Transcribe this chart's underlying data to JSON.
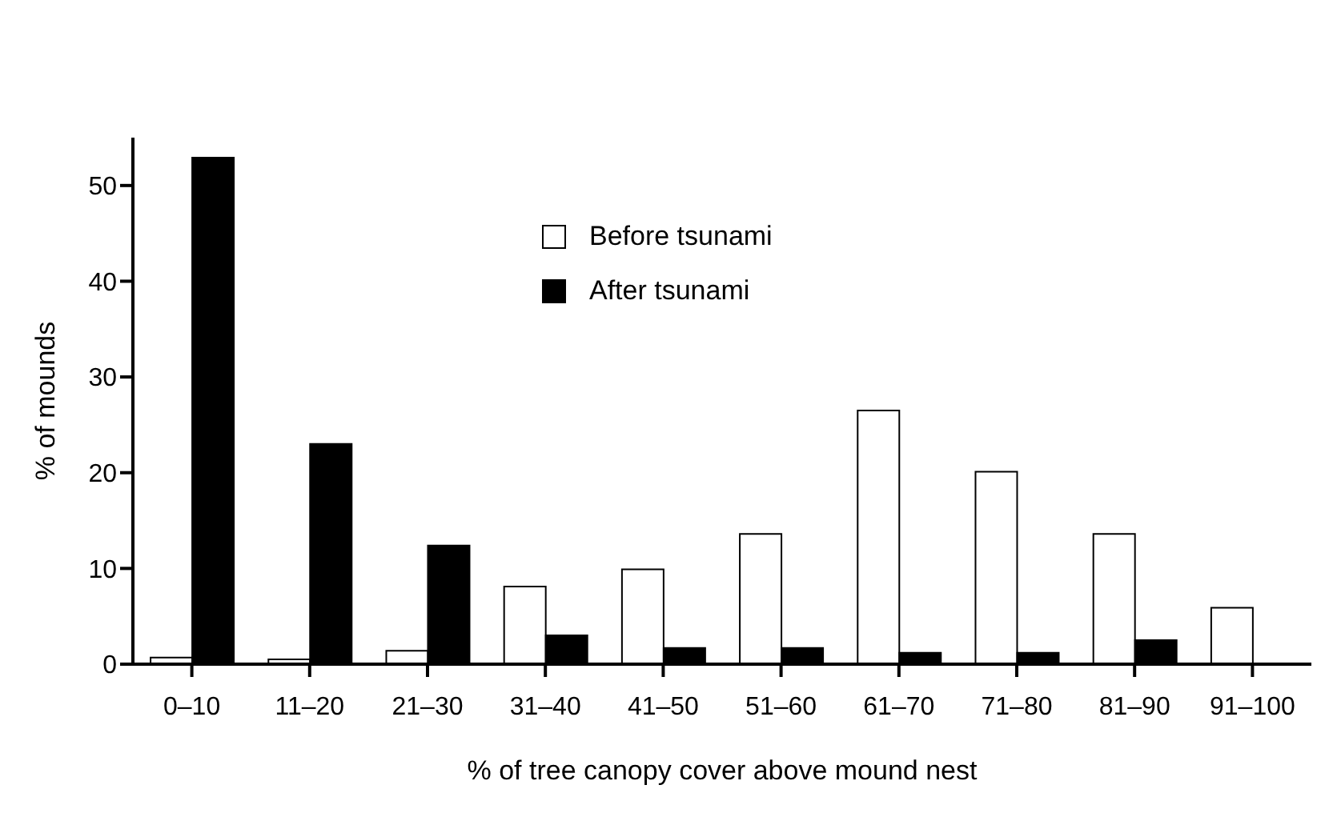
{
  "chart_data": {
    "type": "bar",
    "xlabel": "% of tree canopy cover above mound nest",
    "ylabel": "% of mounds",
    "categories": [
      "0–10",
      "11–20",
      "21–30",
      "31–40",
      "41–50",
      "51–60",
      "61–70",
      "71–80",
      "81–90",
      "91–100"
    ],
    "series": [
      {
        "name": "Before tsunami",
        "color": "#ffffff",
        "values": [
          0.7,
          0.5,
          1.4,
          8.1,
          9.9,
          13.6,
          26.5,
          20.1,
          13.6,
          5.9
        ]
      },
      {
        "name": "After tsunami",
        "color": "#000000",
        "values": [
          52.9,
          23.0,
          12.4,
          3.0,
          1.7,
          1.7,
          1.2,
          1.2,
          2.5,
          0
        ]
      }
    ],
    "ylim": [
      0,
      55
    ],
    "yticks": [
      0,
      10,
      20,
      30,
      40,
      50
    ],
    "grid": false,
    "legend": "top"
  }
}
